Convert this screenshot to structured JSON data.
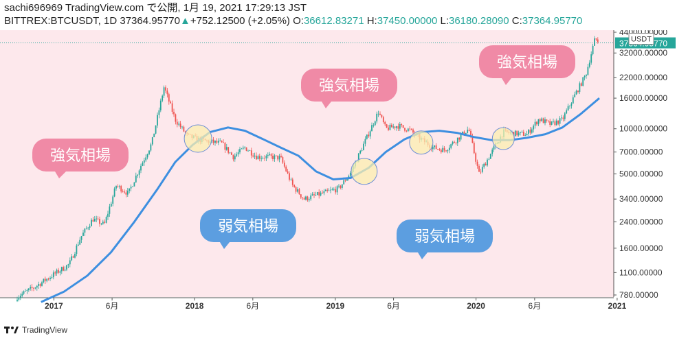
{
  "header": {
    "line1": "sachi696969 TradingView.com で公開, 1月 19, 2021 17:29:13 JST",
    "symbol": "BITTREX:BTCUSDT, 1D 37364.95770",
    "change_arrow": "▲",
    "change": "+752.12500 (+2.05%)",
    "o_label": "O:",
    "o_value": "36612.83271",
    "h_label": "H:",
    "h_value": "37450.00000",
    "l_label": "L:",
    "l_value": "36180.28090",
    "c_label": "C:",
    "c_value": "37364.95770"
  },
  "footer": {
    "brand": "TradingView"
  },
  "colors": {
    "background": "#fde8ec",
    "candle_up": "#26a69a",
    "candle_down": "#ef5350",
    "ma_line": "#3d8fe0",
    "bull_bubble": "#f08aa6",
    "bear_bubble": "#5c9ee0",
    "circle_fill": "#fbefb0",
    "circle_stroke": "#6d8fd6"
  },
  "chart_data": {
    "type": "line",
    "title": "",
    "y_scale": "log",
    "ylim": [
      700,
      46000
    ],
    "y_unit": "USDT",
    "price_label": "37364.95770",
    "x_ticks": [
      "2017",
      "6月",
      "2018",
      "6月",
      "2019",
      "6月",
      "2020",
      "6月",
      "2021"
    ],
    "y_ticks": [
      "44000.00000",
      "32000.00000",
      "22000.00000",
      "16000.00000",
      "10000.00000",
      "7000.00000",
      "5000.00000",
      "3400.00000",
      "2400.00000",
      "1600.00000",
      "1100.00000",
      "780.00000"
    ],
    "series": [
      {
        "style": "candlestick",
        "x": [
          "2016-12-01",
          "2017-01-15",
          "2017-03-01",
          "2017-04-15",
          "2017-05-15",
          "2017-06-15",
          "2017-07-15",
          "2017-08-15",
          "2017-09-15",
          "2017-10-15",
          "2017-11-15",
          "2017-12-17",
          "2018-01-15",
          "2018-02-15",
          "2018-03-15",
          "2018-04-15",
          "2018-05-15",
          "2018-06-15",
          "2018-07-15",
          "2018-08-15",
          "2018-09-15",
          "2018-10-15",
          "2018-11-15",
          "2018-12-15",
          "2019-01-15",
          "2019-02-15",
          "2019-03-15",
          "2019-04-15",
          "2019-05-15",
          "2019-06-26",
          "2019-07-15",
          "2019-08-15",
          "2019-09-15",
          "2019-10-15",
          "2019-11-15",
          "2019-12-15",
          "2020-01-15",
          "2020-02-15",
          "2020-03-13",
          "2020-04-15",
          "2020-05-15",
          "2020-06-15",
          "2020-07-15",
          "2020-08-15",
          "2020-09-15",
          "2020-10-15",
          "2020-11-15",
          "2020-12-15",
          "2021-01-08",
          "2021-01-19"
        ],
        "y": [
          760,
          880,
          1050,
          1250,
          1900,
          2500,
          2300,
          4200,
          3700,
          5500,
          8000,
          19000,
          11500,
          9000,
          8500,
          8200,
          8000,
          6500,
          7500,
          6500,
          6500,
          6400,
          4200,
          3400,
          3600,
          3800,
          4000,
          5100,
          7500,
          13000,
          10000,
          10500,
          9800,
          8500,
          7500,
          7200,
          8500,
          10000,
          5000,
          7000,
          9500,
          9300,
          9200,
          11600,
          10700,
          11500,
          16500,
          23000,
          40000,
          37365
        ]
      },
      {
        "name": "",
        "style": "moving-average",
        "x": [
          "2017-02-01",
          "2017-04-01",
          "2017-06-01",
          "2017-08-01",
          "2017-10-01",
          "2017-12-01",
          "2018-01-15",
          "2018-03-01",
          "2018-04-15",
          "2018-06-01",
          "2018-07-15",
          "2018-09-01",
          "2018-10-15",
          "2018-12-01",
          "2019-01-15",
          "2019-03-01",
          "2019-04-15",
          "2019-06-01",
          "2019-07-15",
          "2019-09-01",
          "2019-10-15",
          "2019-12-01",
          "2020-01-15",
          "2020-03-01",
          "2020-04-15",
          "2020-06-01",
          "2020-07-15",
          "2020-09-01",
          "2020-10-15",
          "2020-12-01",
          "2021-01-19"
        ],
        "y": [
          700,
          820,
          1050,
          1500,
          2400,
          4000,
          6000,
          7800,
          9500,
          10200,
          9700,
          8500,
          7500,
          6600,
          5200,
          4600,
          4700,
          5500,
          7000,
          8500,
          9500,
          9700,
          9400,
          8800,
          8400,
          8400,
          8700,
          9200,
          10200,
          12500,
          16000
        ]
      }
    ],
    "annotations": [
      {
        "kind": "bubble",
        "text": "強気相場"
      },
      {
        "kind": "bubble",
        "text": "強気相場"
      },
      {
        "kind": "bubble",
        "text": "強気相場"
      },
      {
        "kind": "bubble",
        "text": "弱気相場"
      },
      {
        "kind": "bubble",
        "text": "弱気相場"
      }
    ],
    "highlight_circles": 4
  }
}
